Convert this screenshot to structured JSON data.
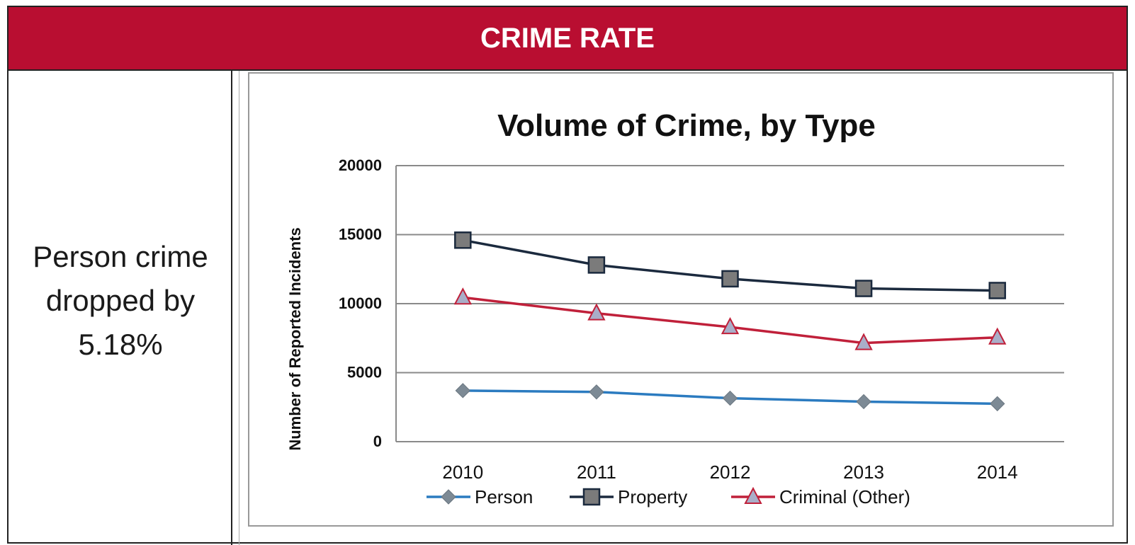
{
  "header": {
    "title": "CRIME RATE"
  },
  "note": {
    "lines": [
      "Person crime",
      "dropped by",
      "5.18%"
    ]
  },
  "colors": {
    "header_bg": "#b90e31",
    "person": "#2b7bc0",
    "property": "#1b2a3e",
    "criminal": "#c0203a"
  },
  "chart_data": {
    "type": "line",
    "title": "Volume of Crime, by Type",
    "xlabel": "",
    "ylabel": "Number of Reported Incidents",
    "x": [
      "2010",
      "2011",
      "2012",
      "2013",
      "2014"
    ],
    "ylim": [
      0,
      20000
    ],
    "yticks": [
      "0",
      "5000",
      "10000",
      "15000",
      "20000"
    ],
    "grid": true,
    "legend": "bottom",
    "series": [
      {
        "name": "Person",
        "values": [
          3700,
          3600,
          3150,
          2900,
          2750
        ],
        "color": "#2b7bc0",
        "marker": "diamond"
      },
      {
        "name": "Property",
        "values": [
          14600,
          12800,
          11800,
          11100,
          10950
        ],
        "color": "#1b2a3e",
        "marker": "square"
      },
      {
        "name": "Criminal (Other)",
        "values": [
          10450,
          9300,
          8300,
          7150,
          7550
        ],
        "color": "#c0203a",
        "marker": "triangle"
      }
    ]
  }
}
